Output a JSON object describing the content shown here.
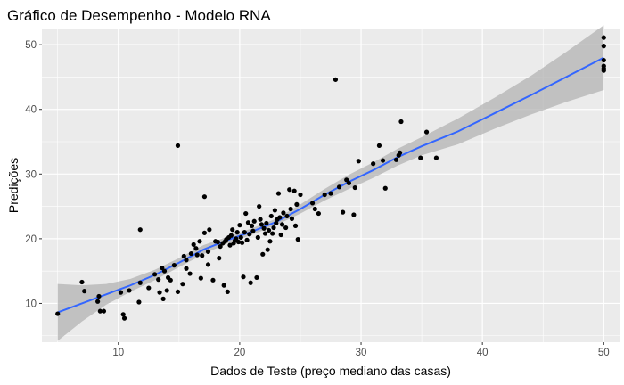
{
  "chart_data": {
    "type": "scatter",
    "title": "Gráfico de Desempenho - Modelo RNA",
    "xlabel": "Dados de Teste (preço mediano das casas)",
    "ylabel": "Predições",
    "xlim": [
      3.7,
      51.3
    ],
    "ylim": [
      4.0,
      52.5
    ],
    "x_ticks": [
      10,
      20,
      30,
      40,
      50
    ],
    "y_ticks": [
      10,
      20,
      30,
      40,
      50
    ],
    "grid": true,
    "legend": "none",
    "colors": {
      "panel": "#ebebeb",
      "grid": "#ffffff",
      "points": "#000000",
      "smooth_line": "#3366ff",
      "confidence_band": "#b3b3b3"
    },
    "series": [
      {
        "points": [
          [
            5.0,
            8.4
          ],
          [
            7.0,
            13.3
          ],
          [
            7.2,
            11.9
          ],
          [
            8.3,
            10.3
          ],
          [
            8.4,
            11.1
          ],
          [
            8.5,
            8.8
          ],
          [
            8.8,
            8.8
          ],
          [
            10.2,
            11.7
          ],
          [
            10.4,
            8.3
          ],
          [
            10.5,
            7.7
          ],
          [
            10.9,
            12.0
          ],
          [
            11.8,
            13.2
          ],
          [
            11.7,
            10.2
          ],
          [
            11.8,
            21.4
          ],
          [
            12.5,
            12.4
          ],
          [
            13.0,
            14.5
          ],
          [
            13.3,
            13.7
          ],
          [
            13.4,
            11.7
          ],
          [
            13.6,
            15.5
          ],
          [
            13.8,
            15.0
          ],
          [
            13.7,
            10.7
          ],
          [
            14.0,
            12.0
          ],
          [
            14.1,
            14.0
          ],
          [
            14.3,
            13.6
          ],
          [
            14.6,
            15.9
          ],
          [
            14.9,
            34.4
          ],
          [
            14.9,
            11.8
          ],
          [
            15.3,
            13.0
          ],
          [
            15.4,
            17.3
          ],
          [
            15.6,
            15.4
          ],
          [
            15.6,
            16.7
          ],
          [
            15.9,
            14.6
          ],
          [
            16.0,
            17.7
          ],
          [
            16.2,
            19.1
          ],
          [
            16.4,
            18.5
          ],
          [
            16.5,
            17.5
          ],
          [
            16.7,
            19.6
          ],
          [
            16.8,
            13.9
          ],
          [
            16.9,
            17.4
          ],
          [
            17.1,
            20.9
          ],
          [
            17.1,
            26.5
          ],
          [
            17.4,
            16.0
          ],
          [
            17.4,
            18.0
          ],
          [
            17.5,
            21.4
          ],
          [
            17.8,
            13.6
          ],
          [
            18.0,
            19.6
          ],
          [
            18.2,
            19.5
          ],
          [
            18.3,
            17.0
          ],
          [
            18.4,
            18.8
          ],
          [
            18.6,
            19.3
          ],
          [
            18.7,
            12.8
          ],
          [
            18.8,
            19.6
          ],
          [
            18.9,
            19.9
          ],
          [
            19.0,
            11.8
          ],
          [
            19.1,
            20.2
          ],
          [
            19.2,
            19.0
          ],
          [
            19.3,
            20.5
          ],
          [
            19.4,
            21.4
          ],
          [
            19.5,
            19.3
          ],
          [
            19.6,
            19.7
          ],
          [
            19.7,
            20.0
          ],
          [
            19.8,
            21.0
          ],
          [
            19.9,
            19.5
          ],
          [
            20.0,
            22.1
          ],
          [
            20.1,
            20.2
          ],
          [
            20.2,
            19.4
          ],
          [
            20.3,
            14.1
          ],
          [
            20.4,
            21.0
          ],
          [
            20.5,
            23.9
          ],
          [
            20.6,
            19.8
          ],
          [
            20.7,
            22.5
          ],
          [
            20.8,
            20.7
          ],
          [
            20.9,
            13.2
          ],
          [
            21.0,
            22.0
          ],
          [
            21.1,
            21.2
          ],
          [
            21.2,
            22.7
          ],
          [
            21.4,
            14.0
          ],
          [
            21.5,
            20.2
          ],
          [
            21.6,
            25.0
          ],
          [
            21.7,
            23.0
          ],
          [
            21.8,
            22.2
          ],
          [
            21.9,
            17.6
          ],
          [
            22.0,
            21.6
          ],
          [
            22.1,
            20.8
          ],
          [
            22.2,
            22.4
          ],
          [
            22.3,
            18.3
          ],
          [
            22.4,
            21.3
          ],
          [
            22.5,
            19.6
          ],
          [
            22.6,
            23.5
          ],
          [
            22.7,
            20.8
          ],
          [
            22.8,
            21.7
          ],
          [
            22.9,
            24.4
          ],
          [
            23.0,
            22.4
          ],
          [
            23.1,
            23.0
          ],
          [
            23.2,
            27.0
          ],
          [
            23.3,
            23.3
          ],
          [
            23.4,
            20.6
          ],
          [
            23.5,
            22.2
          ],
          [
            23.6,
            24.0
          ],
          [
            23.8,
            21.7
          ],
          [
            23.9,
            23.5
          ],
          [
            24.1,
            27.6
          ],
          [
            24.2,
            24.6
          ],
          [
            24.3,
            23.1
          ],
          [
            24.5,
            27.4
          ],
          [
            24.6,
            22.0
          ],
          [
            24.7,
            25.3
          ],
          [
            24.8,
            19.9
          ],
          [
            25.0,
            26.8
          ],
          [
            26.0,
            25.5
          ],
          [
            26.2,
            24.6
          ],
          [
            26.5,
            23.9
          ],
          [
            27.0,
            26.8
          ],
          [
            27.5,
            27.0
          ],
          [
            27.9,
            44.6
          ],
          [
            28.2,
            28.0
          ],
          [
            28.5,
            24.1
          ],
          [
            28.8,
            29.1
          ],
          [
            29.0,
            28.6
          ],
          [
            29.4,
            23.7
          ],
          [
            29.5,
            27.9
          ],
          [
            29.8,
            32.0
          ],
          [
            31.0,
            31.6
          ],
          [
            31.5,
            34.4
          ],
          [
            31.8,
            32.1
          ],
          [
            32.0,
            27.8
          ],
          [
            32.9,
            32.2
          ],
          [
            33.1,
            32.9
          ],
          [
            33.2,
            33.3
          ],
          [
            33.3,
            38.1
          ],
          [
            34.9,
            32.5
          ],
          [
            35.4,
            36.5
          ],
          [
            36.2,
            32.5
          ],
          [
            50.0,
            51.1
          ],
          [
            50.0,
            49.8
          ],
          [
            50.0,
            47.6
          ],
          [
            50.0,
            46.7
          ],
          [
            50.0,
            46.3
          ],
          [
            50.0,
            46.0
          ]
        ]
      }
    ],
    "smooth": {
      "x": [
        5.0,
        7.0,
        9.0,
        11.0,
        13.0,
        15.0,
        17.0,
        19.0,
        21.0,
        23.0,
        25.0,
        27.0,
        29.0,
        31.0,
        33.0,
        35.0,
        38.0,
        41.0,
        44.0,
        47.0,
        50.0
      ],
      "y": [
        8.6,
        10.0,
        11.4,
        12.8,
        14.4,
        16.3,
        18.3,
        19.8,
        21.1,
        22.6,
        24.6,
        26.8,
        28.8,
        30.6,
        32.6,
        34.3,
        36.6,
        39.4,
        42.2,
        45.1,
        48.0
      ],
      "lower": [
        4.2,
        7.2,
        9.8,
        11.8,
        13.6,
        15.6,
        17.6,
        19.3,
        20.6,
        22.1,
        23.9,
        25.9,
        27.7,
        29.4,
        31.3,
        32.9,
        34.6,
        37.0,
        39.2,
        41.2,
        43.0
      ],
      "upper": [
        13.0,
        12.8,
        13.0,
        13.8,
        15.2,
        17.0,
        19.0,
        20.3,
        21.6,
        23.1,
        25.3,
        27.7,
        29.9,
        31.8,
        33.9,
        35.7,
        38.6,
        41.8,
        45.2,
        49.0,
        53.0
      ]
    }
  }
}
